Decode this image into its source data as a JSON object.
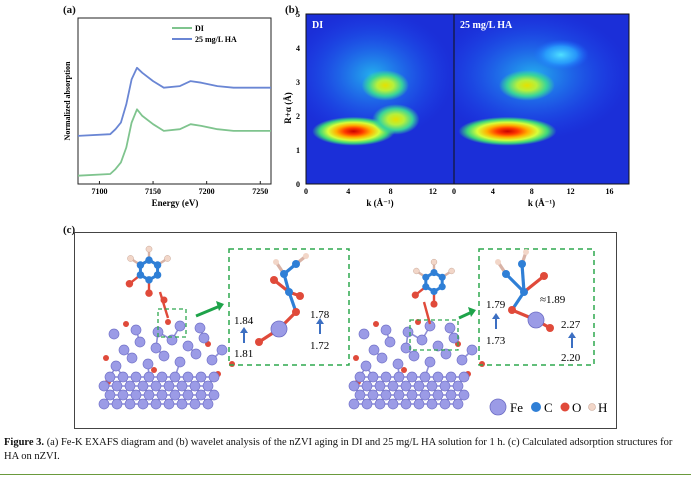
{
  "panel_labels": {
    "a": "(a)",
    "b": "(b)",
    "c": "(c)"
  },
  "chart_data": [
    {
      "type": "line",
      "id": "a",
      "xlabel": "Energy (eV)",
      "ylabel": "Normalized absorption",
      "xlim": [
        7080,
        7260
      ],
      "xticks": [
        7100,
        7150,
        7200,
        7250
      ],
      "ylim": [
        0,
        1
      ],
      "legend_position": "top-right",
      "series": [
        {
          "name": "DI",
          "color": "#7fc48e",
          "x": [
            7080,
            7110,
            7115,
            7120,
            7125,
            7130,
            7135,
            7140,
            7150,
            7160,
            7175,
            7185,
            7195,
            7210,
            7225,
            7240,
            7260
          ],
          "y": [
            0.05,
            0.06,
            0.09,
            0.13,
            0.22,
            0.37,
            0.45,
            0.41,
            0.36,
            0.32,
            0.33,
            0.36,
            0.35,
            0.33,
            0.32,
            0.32,
            0.32
          ]
        },
        {
          "name": "25 mg/L HA",
          "color": "#6a86d4",
          "x": [
            7080,
            7110,
            7115,
            7120,
            7125,
            7130,
            7135,
            7140,
            7150,
            7160,
            7175,
            7185,
            7195,
            7210,
            7225,
            7240,
            7260
          ],
          "y": [
            0.29,
            0.3,
            0.33,
            0.37,
            0.48,
            0.63,
            0.7,
            0.67,
            0.62,
            0.58,
            0.59,
            0.62,
            0.61,
            0.59,
            0.58,
            0.58,
            0.58
          ]
        }
      ]
    },
    {
      "type": "heatmap",
      "id": "b",
      "xlabel": "k (Å⁻¹)",
      "ylabel": "R+α (Å)",
      "ylim": [
        0,
        5
      ],
      "yticks": [
        0,
        1,
        2,
        3,
        4,
        5
      ],
      "panels": [
        {
          "name": "DI",
          "xlim": [
            0,
            14
          ],
          "xticks": [
            0,
            4,
            8,
            12
          ],
          "peaks": [
            {
              "k": 4.5,
              "r": 1.55,
              "intensity": 1.0
            },
            {
              "k": 7.5,
              "r": 2.9,
              "intensity": 0.55
            },
            {
              "k": 8.5,
              "r": 1.9,
              "intensity": 0.35
            }
          ]
        },
        {
          "name": "25 mg/L HA",
          "xlim": [
            0,
            18
          ],
          "xticks": [
            0,
            4,
            8,
            12,
            16
          ],
          "peaks": [
            {
              "k": 5.5,
              "r": 1.55,
              "intensity": 1.0
            },
            {
              "k": 7.5,
              "r": 2.9,
              "intensity": 0.45
            },
            {
              "k": 11,
              "r": 3.8,
              "intensity": 0.4
            }
          ]
        }
      ]
    }
  ],
  "adsorption": {
    "left": {
      "numbers": [
        "1.84",
        "1.81",
        "1.78",
        "1.72"
      ]
    },
    "right": {
      "numbers": [
        "1.79",
        "1.73",
        "≈1.89",
        "2.27",
        "2.20"
      ]
    }
  },
  "legend_atoms": {
    "fe": "Fe",
    "c": "C",
    "o": "O",
    "h": "H"
  },
  "colors": {
    "fe": "#9b9be6",
    "c": "#2f7fd6",
    "o": "#e04a3a",
    "h": "#f2d6c8",
    "dash": "#2fa84f",
    "arrow": "#1ea34a",
    "blue_arrow": "#3c6fc2"
  },
  "caption": {
    "label": "Figure 3.",
    "text": " (a) Fe-K EXAFS diagram and (b) wavelet analysis of the nZVI aging in DI and 25 mg/L HA solution for 1 h. (c) Calculated adsorption structures for HA on nZVI."
  }
}
